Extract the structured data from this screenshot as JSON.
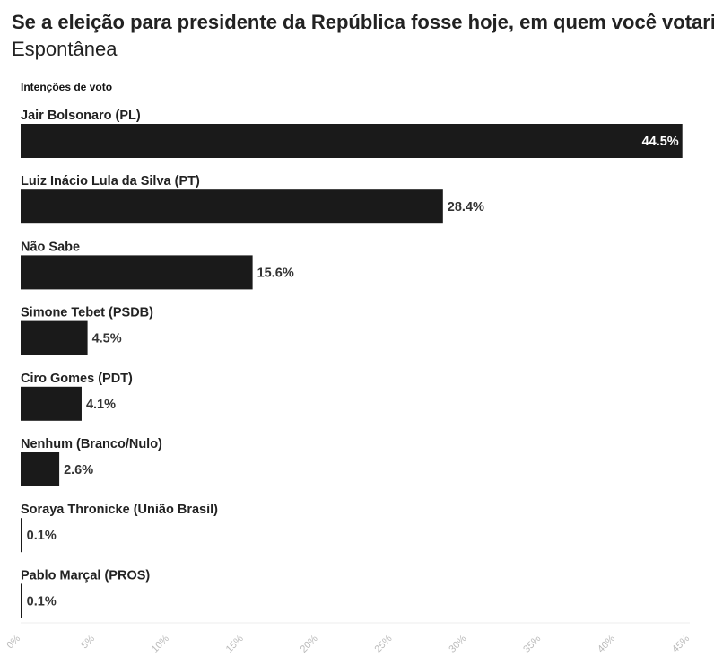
{
  "chart_data": {
    "type": "bar",
    "orientation": "horizontal",
    "title": "Se a eleição para presidente da República fosse hoje, em quem você votaria?",
    "subtitle": "Espontânea",
    "chart_label": "Intenções de voto",
    "categories": [
      "Jair Bolsonaro (PL)",
      "Luiz Inácio Lula da Silva (PT)",
      "Não Sabe",
      "Simone Tebet (PSDB)",
      "Ciro Gomes (PDT)",
      "Nenhum (Branco/Nulo)",
      "Soraya Thronicke (União Brasil)",
      "Pablo Marçal (PROS)"
    ],
    "values": [
      44.5,
      28.4,
      15.6,
      4.5,
      4.1,
      2.6,
      0.1,
      0.1
    ],
    "value_labels": [
      "44.5%",
      "28.4%",
      "15.6%",
      "4.5%",
      "4.1%",
      "2.6%",
      "0.1%",
      "0.1%"
    ],
    "xlim": [
      0,
      45
    ],
    "xticks": [
      0,
      5,
      10,
      15,
      20,
      25,
      30,
      35,
      40,
      45
    ],
    "xtick_labels": [
      "0%",
      "5%",
      "10%",
      "15%",
      "20%",
      "25%",
      "30%",
      "35%",
      "40%",
      "45%"
    ],
    "bar_color": "#1a1a1a",
    "grid": false,
    "legend": "none"
  }
}
